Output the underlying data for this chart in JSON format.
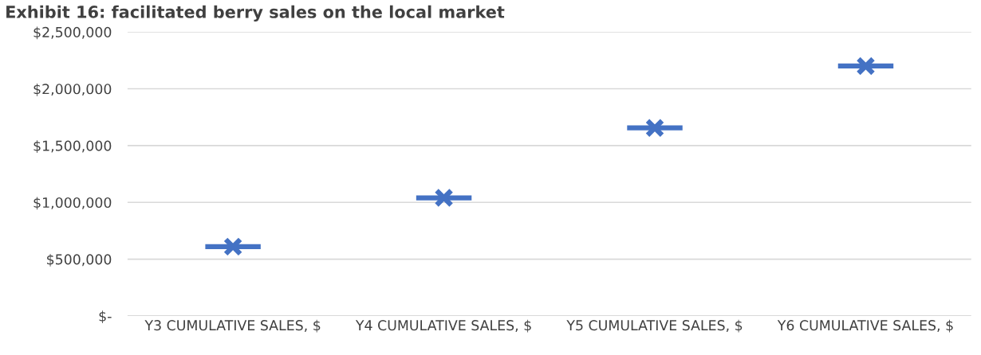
{
  "chart_data": {
    "type": "scatter",
    "title": "Exhibit 16: facilitated berry sales on the local market",
    "categories": [
      "Y3 CUMULATIVE SALES, $",
      "Y4 CUMULATIVE SALES, $",
      "Y5 CUMULATIVE SALES, $",
      "Y6 CUMULATIVE SALES, $"
    ],
    "values": [
      610000,
      1040000,
      1655000,
      2200000
    ],
    "color": "#4472c4",
    "marker": "cross",
    "ylim": [
      0,
      2500000
    ],
    "yticks": [
      {
        "value": 0,
        "label": "$-"
      },
      {
        "value": 500000,
        "label": "$500,000"
      },
      {
        "value": 1000000,
        "label": "$1,000,000"
      },
      {
        "value": 1500000,
        "label": "$1,500,000"
      },
      {
        "value": 2000000,
        "label": "$2,000,000"
      },
      {
        "value": 2500000,
        "label": "$2,500,000"
      }
    ],
    "grid": "y"
  }
}
